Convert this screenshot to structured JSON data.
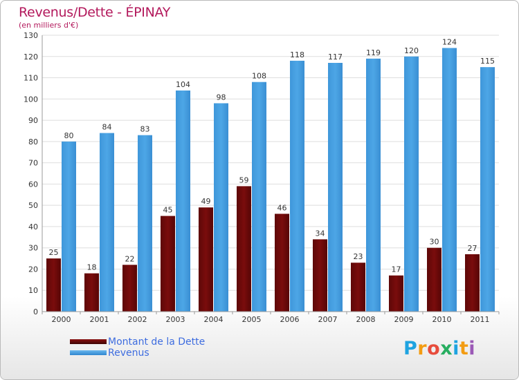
{
  "header": {
    "title": "Revenus/Dette - ÉPINAY",
    "subtitle": "(en milliers d'€)"
  },
  "colors": {
    "dette": "#7a0c0c",
    "revenus": "#4da6e6",
    "title": "#b3195c",
    "legend_text": "#3d6cdf"
  },
  "chart_data": {
    "type": "bar",
    "title": "Revenus/Dette - ÉPINAY",
    "ylabel": "(en milliers d'€)",
    "xlabel": "",
    "ylim": [
      0,
      130
    ],
    "yticks": [
      0,
      10,
      20,
      30,
      40,
      50,
      60,
      70,
      80,
      90,
      100,
      110,
      120,
      130
    ],
    "categories": [
      "2000",
      "2001",
      "2002",
      "2003",
      "2004",
      "2005",
      "2006",
      "2007",
      "2008",
      "2009",
      "2010",
      "2011"
    ],
    "series": [
      {
        "name": "Montant de la Dette",
        "values": [
          25,
          18,
          22,
          45,
          49,
          59,
          46,
          34,
          23,
          17,
          30,
          27
        ]
      },
      {
        "name": "Revenus",
        "values": [
          80,
          84,
          83,
          104,
          98,
          108,
          118,
          117,
          119,
          120,
          124,
          115
        ]
      }
    ],
    "grid": true,
    "legend_position": "bottom-left"
  },
  "logo": {
    "letters": [
      "P",
      "r",
      "o",
      "x",
      "i",
      "t",
      "i"
    ]
  }
}
